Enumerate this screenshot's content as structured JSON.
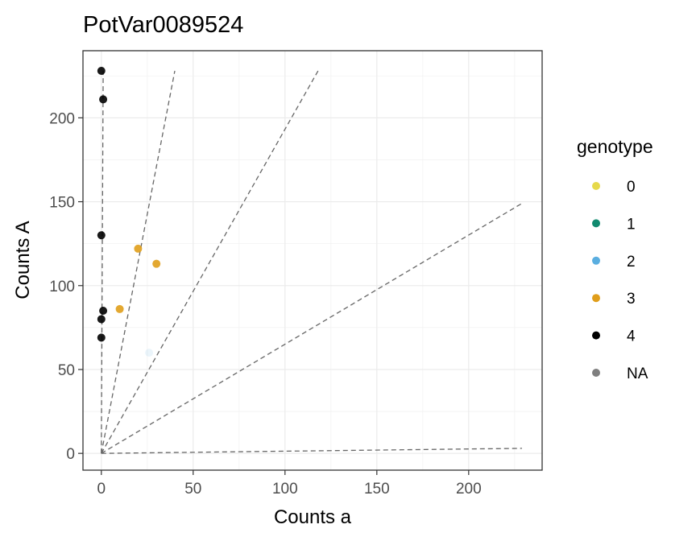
{
  "chart_data": {
    "type": "scatter",
    "title": "PotVar0089524",
    "xlabel": "Counts a",
    "ylabel": "Counts A",
    "xlim": [
      -10,
      240
    ],
    "ylim": [
      -10,
      240
    ],
    "x_ticks": [
      0,
      50,
      100,
      150,
      200
    ],
    "y_ticks": [
      0,
      50,
      100,
      150,
      200
    ],
    "grid": true,
    "legend": {
      "title": "genotype",
      "position": "right",
      "entries": [
        {
          "label": "0",
          "color": "#e6d94a"
        },
        {
          "label": "1",
          "color": "#118a6f"
        },
        {
          "label": "2",
          "color": "#5aaee0"
        },
        {
          "label": "3",
          "color": "#e09e1b"
        },
        {
          "label": "4",
          "color": "#000000"
        },
        {
          "label": "NA",
          "color": "#7f7f7f"
        }
      ]
    },
    "reference_lines": [
      {
        "x": [
          0,
          40
        ],
        "y": [
          0,
          228
        ]
      },
      {
        "x": [
          0,
          118
        ],
        "y": [
          0,
          228
        ]
      },
      {
        "x": [
          0,
          229
        ],
        "y": [
          0,
          149
        ]
      },
      {
        "x": [
          0,
          229
        ],
        "y": [
          0,
          3
        ]
      },
      {
        "x": [
          0,
          1
        ],
        "y": [
          0,
          228
        ]
      }
    ],
    "points": [
      {
        "x": 0,
        "y": 228,
        "genotype": "4"
      },
      {
        "x": 1,
        "y": 211,
        "genotype": "4"
      },
      {
        "x": 0,
        "y": 130,
        "genotype": "4"
      },
      {
        "x": 1,
        "y": 85,
        "genotype": "4"
      },
      {
        "x": 0,
        "y": 80,
        "genotype": "4"
      },
      {
        "x": 0,
        "y": 69,
        "genotype": "4"
      },
      {
        "x": 20,
        "y": 122,
        "genotype": "3"
      },
      {
        "x": 30,
        "y": 113,
        "genotype": "3"
      },
      {
        "x": 10,
        "y": 86,
        "genotype": "3"
      },
      {
        "x": 26,
        "y": 60,
        "genotype": "2",
        "faded": true
      }
    ]
  }
}
